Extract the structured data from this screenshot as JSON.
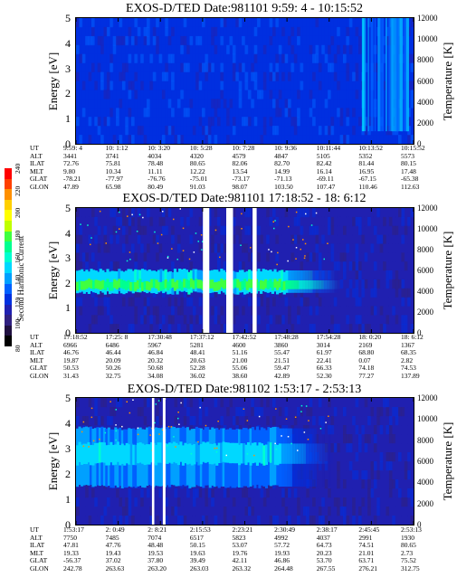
{
  "colorbar": {
    "label": "Second Harmonic Current",
    "ticks": [
      "240",
      "220",
      "200",
      "180",
      "160",
      "140",
      "120",
      "100",
      "80"
    ],
    "colors": [
      "#ff0000",
      "#ff4000",
      "#ff9000",
      "#ffd000",
      "#ffff00",
      "#c0ff00",
      "#40ff40",
      "#00ff90",
      "#00ffd0",
      "#00d8ff",
      "#00a0ff",
      "#0060ff",
      "#0030e0",
      "#2020b0",
      "#302080",
      "#201040",
      "#000000"
    ]
  },
  "panels": [
    {
      "title": "EXOS-D/TED   Date:981101   9:59: 4 - 10:15:52",
      "ylabel_left": "Energy [eV]",
      "ylabel_right": "Temperature [K]",
      "yticks_left": [
        "5",
        "4",
        "3",
        "2",
        "1",
        "0"
      ],
      "yticks_right": [
        "12000",
        "10000",
        "8000",
        "6000",
        "4000",
        "2000",
        "0"
      ],
      "ephem_labels": [
        "UT",
        "ALT",
        "ILAT",
        "MLT",
        "GLAT",
        "GLON"
      ],
      "ephem_cols": [
        [
          "9:59: 4",
          "3441",
          "72.76",
          "9.80",
          "-78.21",
          "47.89"
        ],
        [
          "10: 1:12",
          "3741",
          "75.81",
          "10.34",
          "-77.97",
          "65.98"
        ],
        [
          "10: 3:20",
          "4034",
          "78.48",
          "11.11",
          "-76.76",
          "80.49"
        ],
        [
          "10: 5:28",
          "4320",
          "80.65",
          "12.22",
          "-75.01",
          "91.03"
        ],
        [
          "10: 7:28",
          "4579",
          "82.06",
          "13.54",
          "-73.17",
          "98.07"
        ],
        [
          "10: 9:36",
          "4847",
          "82.70",
          "14.99",
          "-71.13",
          "103.50"
        ],
        [
          "10:11:44",
          "5105",
          "82.42",
          "16.14",
          "-69.11",
          "107.47"
        ],
        [
          "10:13:52",
          "5352",
          "81.44",
          "16.95",
          "-67.15",
          "110.46"
        ],
        [
          "10:15:52",
          "5573",
          "80.15",
          "17.48",
          "-65.38",
          "112.63"
        ]
      ]
    },
    {
      "title": "EXOS-D/TED   Date:981101   17:18:52 - 18: 6:12",
      "ylabel_left": "Energy [eV]",
      "ylabel_right": "Temperature [K]",
      "yticks_left": [
        "5",
        "4",
        "3",
        "2",
        "1",
        "0"
      ],
      "yticks_right": [
        "12000",
        "10000",
        "8000",
        "6000",
        "4000",
        "2000",
        "0"
      ],
      "ephem_labels": [
        "UT",
        "ALT",
        "ILAT",
        "MLT",
        "GLAT",
        "GLON"
      ],
      "ephem_cols": [
        [
          "17:18:52",
          "6966",
          "46.76",
          "19.87",
          "50.53",
          "31.43"
        ],
        [
          "17:25: 8",
          "6486",
          "46.44",
          "20.09",
          "50.26",
          "32.75"
        ],
        [
          "17:30:48",
          "5967",
          "46.84",
          "20.32",
          "50.68",
          "34.08"
        ],
        [
          "17:37:12",
          "5281",
          "48.41",
          "20.63",
          "52.28",
          "36.02"
        ],
        [
          "17:42:52",
          "4600",
          "51.16",
          "21.00",
          "55.06",
          "38.60"
        ],
        [
          "17:48:28",
          "3860",
          "55.47",
          "21.51",
          "59.47",
          "42.89"
        ],
        [
          "17:54:28",
          "3014",
          "61.97",
          "22.41",
          "66.33",
          "52.30"
        ],
        [
          "18: 0:20",
          "2169",
          "68.80",
          "0.07",
          "74.18",
          "77.27"
        ],
        [
          "18: 6:12",
          "1367",
          "68.35",
          "2.82",
          "74.53",
          "137.89"
        ]
      ]
    },
    {
      "title": "EXOS-D/TED   Date:981102   1:53:17 - 2:53:13",
      "ylabel_left": "Energy [eV]",
      "ylabel_right": "Temperature [K]",
      "yticks_left": [
        "5",
        "4",
        "3",
        "2",
        "1",
        "0"
      ],
      "yticks_right": [
        "12000",
        "10000",
        "8000",
        "6000",
        "4000",
        "2000",
        "0"
      ],
      "ephem_labels": [
        "UT",
        "ALT",
        "ILAT",
        "MLT",
        "GLAT",
        "GLON"
      ],
      "ephem_cols": [
        [
          "1:53:17",
          "7750",
          "47.81",
          "19.33",
          "-56.37",
          "242.78"
        ],
        [
          "2: 0:49",
          "7485",
          "47.76",
          "19.43",
          "37.02",
          "263.63"
        ],
        [
          "2: 8:21",
          "7074",
          "48.48",
          "19.53",
          "37.80",
          "263.20"
        ],
        [
          "2:15:53",
          "6517",
          "50.15",
          "19.63",
          "39.49",
          "263.03"
        ],
        [
          "2:23:21",
          "5823",
          "53.07",
          "19.76",
          "42.11",
          "263.32"
        ],
        [
          "2:30:49",
          "4992",
          "57.72",
          "19.93",
          "46.86",
          "264.48"
        ],
        [
          "2:38:17",
          "4037",
          "64.73",
          "20.23",
          "53.70",
          "267.55"
        ],
        [
          "2:45:45",
          "2991",
          "74.51",
          "21.01",
          "63.71",
          "276.21"
        ],
        [
          "2:53:13",
          "1930",
          "80.65",
          "2.73",
          "75.52",
          "312.75"
        ]
      ]
    }
  ],
  "chart_data": [
    {
      "type": "heatmap",
      "title": "EXOS-D/TED   Date:981101   9:59: 4 - 10:15:52",
      "xlabel": "UT",
      "ylabel": "Energy [eV]",
      "ylabel_right": "Temperature [K]",
      "x_ticks": [
        "9:59: 4",
        "10: 1:12",
        "10: 3:20",
        "10: 5:28",
        "10: 7:28",
        "10: 9:36",
        "10:11:44",
        "10:13:52",
        "10:15:52"
      ],
      "ylim": [
        0,
        5
      ],
      "ylim_right": [
        0,
        12000
      ],
      "color_scale": [
        80,
        240
      ],
      "dominant_level": 120,
      "features": [
        {
          "x_range": [
            0.84,
            0.99
          ],
          "energy_range": [
            0.5,
            5
          ],
          "level": 140
        }
      ]
    },
    {
      "type": "heatmap",
      "title": "EXOS-D/TED   Date:981101   17:18:52 - 18: 6:12",
      "xlabel": "UT",
      "ylabel": "Energy [eV]",
      "ylabel_right": "Temperature [K]",
      "x_ticks": [
        "17:18:52",
        "17:25: 8",
        "17:30:48",
        "17:37:12",
        "17:42:52",
        "17:48:28",
        "17:54:28",
        "18: 0:20",
        "18: 6:12"
      ],
      "ylim": [
        0,
        5
      ],
      "ylim_right": [
        0,
        12000
      ],
      "color_scale": [
        80,
        240
      ],
      "dominant_level": 110,
      "bands": [
        {
          "x_range": [
            0.0,
            0.62
          ],
          "energy_range": [
            1.6,
            2.5
          ],
          "level": 150
        },
        {
          "x_range": [
            0.0,
            0.62
          ],
          "energy_range": [
            1.75,
            2.1
          ],
          "level": 175
        }
      ],
      "gaps": [
        [
          0.376,
          0.395
        ],
        [
          0.445,
          0.465
        ],
        [
          0.523,
          0.535
        ]
      ]
    },
    {
      "type": "heatmap",
      "title": "EXOS-D/TED   Date:981102   1:53:17 - 2:53:13",
      "xlabel": "UT",
      "ylabel": "Energy [eV]",
      "ylabel_right": "Temperature [K]",
      "x_ticks": [
        "1:53:17",
        "2: 0:49",
        "2: 8:21",
        "2:15:53",
        "2:23:21",
        "2:30:49",
        "2:38:17",
        "2:45:45",
        "2:53:13"
      ],
      "ylim": [
        0,
        5
      ],
      "ylim_right": [
        0,
        12000
      ],
      "color_scale": [
        80,
        240
      ],
      "dominant_level": 110,
      "bands": [
        {
          "x_range": [
            0.0,
            0.6
          ],
          "energy_range": [
            1.5,
            3.8
          ],
          "level": 135
        },
        {
          "x_range": [
            0.0,
            0.6
          ],
          "energy_range": [
            2.4,
            3.2
          ],
          "level": 150
        }
      ],
      "gaps": [
        [
          0.225,
          0.232
        ],
        [
          0.257,
          0.265
        ]
      ]
    }
  ]
}
